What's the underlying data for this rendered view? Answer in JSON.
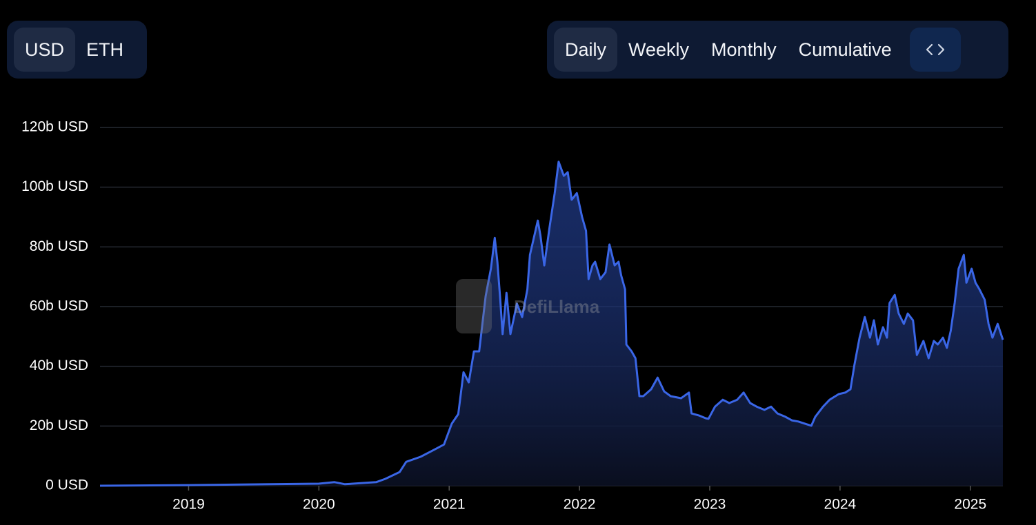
{
  "toggles": {
    "currency": [
      "USD",
      "ETH"
    ],
    "period": [
      "Daily",
      "Weekly",
      "Monthly",
      "Cumulative"
    ]
  },
  "chart_data": {
    "type": "area",
    "watermark": "DefiLlama",
    "color": "#3a66e6",
    "grid": true,
    "x": [
      2018.32,
      2019,
      2020,
      2020.12,
      2020.2,
      2020.44,
      2020.51,
      2020.62,
      2020.67,
      2020.78,
      2020.86,
      2020.96,
      2021.02,
      2021.07,
      2021.11,
      2021.15,
      2021.19,
      2021.23,
      2021.28,
      2021.32,
      2021.35,
      2021.37,
      2021.39,
      2021.41,
      2021.44,
      2021.47,
      2021.52,
      2021.56,
      2021.6,
      2021.62,
      2021.68,
      2021.7,
      2021.73,
      2021.77,
      2021.81,
      2021.84,
      2021.88,
      2021.91,
      2021.94,
      2021.98,
      2022.02,
      2022.05,
      2022.07,
      2022.1,
      2022.12,
      2022.16,
      2022.2,
      2022.23,
      2022.27,
      2022.3,
      2022.32,
      2022.35,
      2022.36,
      2022.4,
      2022.43,
      2022.46,
      2022.49,
      2022.55,
      2022.6,
      2022.65,
      2022.7,
      2022.78,
      2022.84,
      2022.86,
      2022.92,
      2022.97,
      2022.99,
      2023.04,
      2023.1,
      2023.15,
      2023.21,
      2023.26,
      2023.31,
      2023.36,
      2023.42,
      2023.47,
      2023.52,
      2023.58,
      2023.63,
      2023.68,
      2023.73,
      2023.78,
      2023.81,
      2023.87,
      2023.92,
      2023.99,
      2024.04,
      2024.08,
      2024.11,
      2024.15,
      2024.19,
      2024.23,
      2024.26,
      2024.29,
      2024.33,
      2024.36,
      2024.38,
      2024.42,
      2024.45,
      2024.49,
      2024.52,
      2024.56,
      2024.59,
      2024.64,
      2024.68,
      2024.72,
      2024.75,
      2024.79,
      2024.82,
      2024.85,
      2024.88,
      2024.91,
      2024.95,
      2024.97,
      2025.01,
      2025.04,
      2025.07,
      2025.11,
      2025.14,
      2025.17,
      2025.21,
      2025.25
    ],
    "values": [
      0,
      0.2,
      0.7,
      1.2,
      0.5,
      1.2,
      2.3,
      4.6,
      8,
      9.7,
      11.5,
      13.8,
      20.8,
      24,
      38,
      34.6,
      45,
      45,
      63.5,
      72.7,
      83,
      75,
      63.5,
      50.8,
      64.6,
      50.8,
      61,
      56.5,
      65.8,
      77.3,
      88.8,
      84,
      73.8,
      86.5,
      98,
      108.5,
      103.8,
      105,
      95.8,
      98,
      90,
      85.4,
      69.2,
      73.8,
      75,
      69.2,
      71.5,
      80.8,
      73.8,
      75,
      70.4,
      65.8,
      47.3,
      45,
      42.7,
      30,
      30,
      32.3,
      36.2,
      31.6,
      30,
      29.3,
      31.2,
      24.2,
      23.5,
      22.6,
      22.4,
      26.5,
      28.8,
      27.7,
      28.8,
      31.2,
      27.7,
      26.5,
      25.4,
      26.5,
      24.2,
      23.1,
      21.9,
      21.5,
      20.8,
      20.1,
      23.1,
      26.5,
      28.8,
      30.7,
      31.2,
      32.3,
      40.4,
      49.6,
      56.5,
      49.6,
      55.4,
      47.3,
      53.1,
      49.6,
      61.2,
      63.9,
      57.7,
      54.2,
      57.7,
      55.4,
      43.8,
      48.5,
      42.7,
      48.5,
      47.3,
      49.6,
      46.2,
      51.9,
      61.2,
      72.7,
      77.3,
      68,
      72.7,
      68,
      65.8,
      62.3,
      54.2,
      49.6,
      54.2,
      48.9
    ],
    "xlim": [
      2018.32,
      2025.25
    ],
    "xticks": [
      2019,
      2020,
      2021,
      2022,
      2023,
      2024,
      2025
    ],
    "ylim": [
      0,
      120
    ],
    "yticks": [
      {
        "value": 0,
        "label": "0 USD"
      },
      {
        "value": 20,
        "label": "20b USD"
      },
      {
        "value": 40,
        "label": "40b USD"
      },
      {
        "value": 60,
        "label": "60b USD"
      },
      {
        "value": 80,
        "label": "80b USD"
      },
      {
        "value": 100,
        "label": "100b USD"
      },
      {
        "value": 120,
        "label": "120b USD"
      }
    ]
  }
}
